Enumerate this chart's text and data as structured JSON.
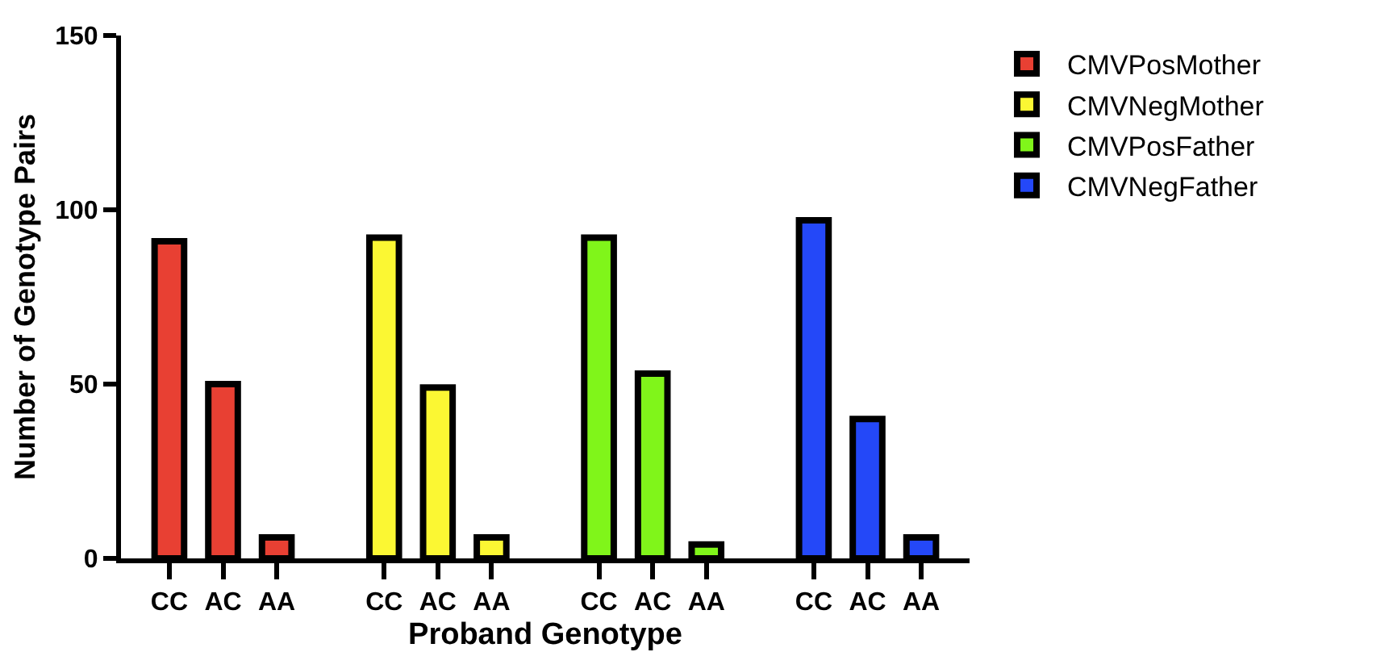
{
  "chart_data": {
    "type": "bar",
    "xlabel": "Proband Genotype",
    "ylabel": "Number of Genotype Pairs",
    "categories": [
      "CC",
      "AC",
      "AA",
      null,
      "CC",
      "AC",
      "AA",
      null,
      "CC",
      "AC",
      "AA",
      null,
      "CC",
      "AC",
      "AA"
    ],
    "series": [
      {
        "name": "CMVPosMother",
        "color": "#e84033",
        "values": [
          91,
          50,
          6,
          null,
          null,
          null,
          null,
          null,
          null,
          null,
          null,
          null,
          null,
          null,
          null
        ]
      },
      {
        "name": "CMVNegMother",
        "color": "#fbf733",
        "values": [
          null,
          null,
          null,
          null,
          92,
          49,
          6,
          null,
          null,
          null,
          null,
          null,
          null,
          null,
          null
        ]
      },
      {
        "name": "CMVPosFather",
        "color": "#80f51a",
        "values": [
          null,
          null,
          null,
          null,
          null,
          null,
          null,
          null,
          92,
          53,
          4,
          null,
          null,
          null,
          null
        ]
      },
      {
        "name": "CMVNegFather",
        "color": "#2448f8",
        "values": [
          null,
          null,
          null,
          null,
          null,
          null,
          null,
          null,
          null,
          null,
          null,
          null,
          97,
          40,
          6
        ]
      }
    ],
    "ylim": [
      0,
      150
    ],
    "yticks": [
      0,
      50,
      100,
      150
    ],
    "grid": false,
    "legend": "top right"
  }
}
